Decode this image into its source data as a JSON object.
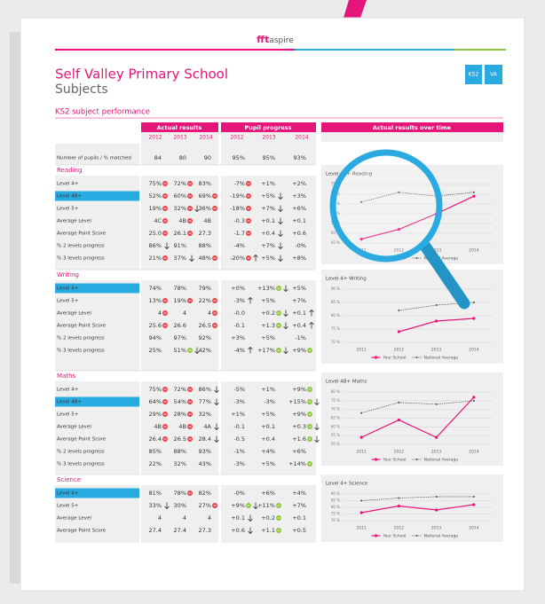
{
  "logo": {
    "brand": "fft",
    "product": "aspire"
  },
  "title": "Self Valley Primary School",
  "subtitle": "Subjects",
  "buttons": [
    "KS2",
    "VA"
  ],
  "section_title": "KS2 subject performance",
  "headers": {
    "actual": "Actual results",
    "progress": "Pupil progress",
    "over_time": "Actual results over time"
  },
  "actual_years": [
    "2012",
    "2013",
    "2014"
  ],
  "progress_years": [
    "2012",
    "2013",
    "2014"
  ],
  "summary_row": {
    "label": "Number of pupils / % matched",
    "cells": [
      "84",
      "80",
      "90",
      "95%",
      "95%",
      "93%"
    ]
  },
  "sections": [
    {
      "name": "Reading",
      "rows": [
        {
          "label": "Level 4+",
          "cells": [
            {
              "text": "75%",
              "dot": "red"
            },
            {
              "text": "72%",
              "dot": "red"
            },
            "83%",
            {
              "text": "-7%",
              "dot": "red"
            },
            "+1%",
            "+2%"
          ]
        },
        {
          "label": "Level 4B+",
          "highlight": true,
          "cells": [
            {
              "text": "52%",
              "dot": "red"
            },
            {
              "text": "60%",
              "dot": "red"
            },
            {
              "text": "69%",
              "dot": "red"
            },
            {
              "text": "-19%",
              "dot": "red"
            },
            {
              "text": "+5%",
              "arrow": "up"
            },
            "+3%"
          ]
        },
        {
          "label": "Level 5+",
          "cells": [
            {
              "text": "19%",
              "dot": "red"
            },
            {
              "text": "32%",
              "dot": "red",
              "arrow": "up"
            },
            {
              "text": "36%",
              "dot": "red"
            },
            {
              "text": "-18%",
              "dot": "red"
            },
            {
              "text": "+7%",
              "arrow": "up"
            },
            "+6%"
          ]
        },
        {
          "label": "Average Level",
          "cells": [
            {
              "text": "4C",
              "dot": "red"
            },
            {
              "text": "4B",
              "dot": "red"
            },
            "4B",
            {
              "text": "-0.3",
              "dot": "red"
            },
            {
              "text": "+0.1",
              "arrow": "up"
            },
            "+0.1"
          ]
        },
        {
          "label": "Average Point Score",
          "cells": [
            {
              "text": "25.0",
              "dot": "red"
            },
            {
              "text": "26.1",
              "dot": "red"
            },
            "27.3",
            {
              "text": "-1.7",
              "dot": "red"
            },
            {
              "text": "+0.4",
              "arrow": "up"
            },
            "+0.6"
          ]
        },
        {
          "label": "% 2 levels progress",
          "cells": [
            {
              "text": "86%",
              "arrow": "up"
            },
            "91%",
            "88%",
            "-4%",
            {
              "text": "+7%",
              "arrow": "up"
            },
            "-0%"
          ]
        },
        {
          "label": "% 3 levels progress",
          "cells": [
            {
              "text": "21%",
              "dot": "red"
            },
            {
              "text": "37%",
              "arrow": "up"
            },
            {
              "text": "48%",
              "dot": "red"
            },
            {
              "text": "-20%",
              "dot": "red",
              "arrow": "down"
            },
            {
              "text": "+5%",
              "arrow": "up"
            },
            "+8%"
          ]
        }
      ],
      "chart": {
        "title": "Level 4B+ Reading",
        "x": [
          "2011",
          "2012",
          "2013",
          "2014"
        ],
        "ylim": [
          45,
          75
        ],
        "yticks": [
          {
            "value": 45,
            "label": "45 %"
          },
          {
            "value": 50,
            "label": "50 %"
          },
          {
            "value": 55,
            "label": "55 %"
          },
          {
            "value": 60,
            "label": "60 %"
          },
          {
            "value": 65,
            "label": "65 %"
          },
          {
            "value": 70,
            "label": "70 %"
          },
          {
            "value": 75,
            "label": "75 %"
          }
        ],
        "series": [
          {
            "name": "Your School",
            "color": "#e5157a",
            "values": [
              47,
              52,
              60,
              69
            ]
          },
          {
            "name": "National Average",
            "color": "#444444",
            "values": [
              66,
              71,
              69,
              71
            ]
          }
        ]
      }
    },
    {
      "name": "Writing",
      "rows": [
        {
          "label": "Level 4+",
          "highlight": true,
          "cells": [
            "74%",
            "78%",
            "79%",
            "+0%",
            {
              "text": "+13%",
              "dot": "green",
              "arrow": "up"
            },
            "+5%"
          ]
        },
        {
          "label": "Level 5+",
          "cells": [
            {
              "text": "13%",
              "dot": "red"
            },
            {
              "text": "19%",
              "dot": "red"
            },
            {
              "text": "22%",
              "dot": "red"
            },
            {
              "text": "-3%",
              "arrow": "down"
            },
            "+5%",
            "+7%"
          ]
        },
        {
          "label": "Average Level",
          "cells": [
            {
              "text": "4",
              "dot": "red"
            },
            "4",
            {
              "text": "4",
              "dot": "red"
            },
            "-0.0",
            {
              "text": "+0.2",
              "dot": "green",
              "arrow": "up"
            },
            {
              "text": "+0.1",
              "arrow": "down"
            }
          ]
        },
        {
          "label": "Average Point Score",
          "cells": [
            {
              "text": "25.6",
              "dot": "red"
            },
            "26.6",
            {
              "text": "26.5",
              "dot": "red"
            },
            "-0.1",
            {
              "text": "+1.3",
              "dot": "green",
              "arrow": "up"
            },
            {
              "text": "+0.4",
              "arrow": "down"
            }
          ]
        },
        {
          "label": "% 2 levels progress",
          "cells": [
            "94%",
            "97%",
            "92%",
            "+3%",
            "+5%",
            "-1%"
          ]
        },
        {
          "label": "% 3 levels progress",
          "cells": [
            "25%",
            {
              "text": "51%",
              "dot": "green",
              "arrow": "up"
            },
            "42%",
            {
              "text": "-4%",
              "arrow": "down"
            },
            {
              "text": "+17%",
              "dot": "green",
              "arrow": "up"
            },
            {
              "text": "+9%",
              "dot": "green"
            }
          ]
        }
      ],
      "chart": {
        "title": "Level 4+ Writing",
        "x": [
          "2011",
          "2012",
          "2013",
          "2014"
        ],
        "ylim": [
          70,
          90
        ],
        "yticks": [
          {
            "value": 70,
            "label": "70 %"
          },
          {
            "value": 75,
            "label": "75 %"
          },
          {
            "value": 80,
            "label": "80 %"
          },
          {
            "value": 85,
            "label": "85 %"
          },
          {
            "value": 90,
            "label": "90 %"
          }
        ],
        "series": [
          {
            "name": "Your School",
            "color": "#e5157a",
            "values": [
              null,
              74,
              78,
              79
            ]
          },
          {
            "name": "National Average",
            "color": "#444444",
            "values": [
              null,
              82,
              84,
              85
            ]
          }
        ]
      }
    },
    {
      "name": "Maths",
      "rows": [
        {
          "label": "Level 4+",
          "cells": [
            {
              "text": "75%",
              "dot": "red"
            },
            {
              "text": "72%",
              "dot": "red"
            },
            {
              "text": "86%",
              "arrow": "up"
            },
            "-5%",
            "+1%",
            {
              "text": "+9%",
              "dot": "green"
            }
          ]
        },
        {
          "label": "Level 4B+",
          "highlight": true,
          "cells": [
            {
              "text": "64%",
              "dot": "red"
            },
            {
              "text": "54%",
              "dot": "red"
            },
            {
              "text": "77%",
              "arrow": "up"
            },
            "-3%",
            "-3%",
            {
              "text": "+15%",
              "dot": "green",
              "arrow": "up"
            }
          ]
        },
        {
          "label": "Level 5+",
          "cells": [
            {
              "text": "29%",
              "dot": "red"
            },
            {
              "text": "28%",
              "dot": "red"
            },
            "32%",
            "+1%",
            "+5%",
            {
              "text": "+9%",
              "dot": "green"
            }
          ]
        },
        {
          "label": "Average Level",
          "cells": [
            {
              "text": "4B",
              "dot": "red"
            },
            {
              "text": "4B",
              "dot": "red"
            },
            {
              "text": "4A",
              "arrow": "up"
            },
            "-0.1",
            "+0.1",
            {
              "text": "+0.3",
              "dot": "green",
              "arrow": "up"
            }
          ]
        },
        {
          "label": "Average Point Score",
          "cells": [
            {
              "text": "26.4",
              "dot": "red"
            },
            {
              "text": "26.5",
              "dot": "red"
            },
            {
              "text": "28.4",
              "arrow": "up"
            },
            "-0.5",
            "+0.4",
            {
              "text": "+1.6",
              "dot": "green",
              "arrow": "up"
            }
          ]
        },
        {
          "label": "% 2 levels progress",
          "cells": [
            "85%",
            "88%",
            "93%",
            "-1%",
            "+4%",
            "+6%"
          ]
        },
        {
          "label": "% 3 levels progress",
          "cells": [
            "22%",
            "32%",
            "43%",
            "-3%",
            "+5%",
            {
              "text": "+14%",
              "dot": "green"
            }
          ]
        }
      ],
      "chart": {
        "title": "Level 4B+ Maths",
        "x": [
          "2011",
          "2012",
          "2013",
          "2014"
        ],
        "ylim": [
          50,
          80
        ],
        "yticks": [
          {
            "value": 50,
            "label": "50 %"
          },
          {
            "value": 55,
            "label": "55 %"
          },
          {
            "value": 60,
            "label": "60 %"
          },
          {
            "value": 65,
            "label": "65 %"
          },
          {
            "value": 70,
            "label": "70 %"
          },
          {
            "value": 75,
            "label": "75 %"
          },
          {
            "value": 80,
            "label": "80 %"
          }
        ],
        "series": [
          {
            "name": "Your School",
            "color": "#e5157a",
            "values": [
              54,
              64,
              54,
              77
            ]
          },
          {
            "name": "National Average",
            "color": "#444444",
            "values": [
              68,
              74,
              73,
              75
            ]
          }
        ]
      }
    },
    {
      "name": "Science",
      "rows": [
        {
          "label": "Level 4+",
          "highlight": true,
          "cells": [
            "81%",
            {
              "text": "78%",
              "dot": "red"
            },
            "82%",
            "-0%",
            "+6%",
            "+4%"
          ]
        },
        {
          "label": "Level 5+",
          "cells": [
            {
              "text": "33%",
              "arrow": "up"
            },
            "30%",
            {
              "text": "27%",
              "dot": "red"
            },
            {
              "text": "+9%",
              "dot": "green",
              "arrow": "up"
            },
            {
              "text": "+11%",
              "dot": "green"
            },
            "+7%"
          ]
        },
        {
          "label": "Average Level",
          "cells": [
            "4",
            "4",
            "4",
            {
              "text": "+0.1",
              "arrow": "up"
            },
            {
              "text": "+0.2",
              "dot": "green"
            },
            "+0.1"
          ]
        },
        {
          "label": "Average Point Score",
          "cells": [
            "27.4",
            "27.4",
            "27.3",
            {
              "text": "+0.6",
              "arrow": "up"
            },
            {
              "text": "+1.1",
              "dot": "green"
            },
            "+0.5"
          ]
        }
      ],
      "chart": {
        "title": "Level 4+ Science",
        "x": [
          "2011",
          "2012",
          "2013",
          "2014"
        ],
        "ylim": [
          70,
          90
        ],
        "yticks": [
          {
            "value": 70,
            "label": "70 %"
          },
          {
            "value": 75,
            "label": "75 %"
          },
          {
            "value": 80,
            "label": "80 %"
          },
          {
            "value": 85,
            "label": "85 %"
          },
          {
            "value": 90,
            "label": "90 %"
          }
        ],
        "series": [
          {
            "name": "Your School",
            "color": "#e5157a",
            "values": [
              76,
              81,
              78,
              82
            ]
          },
          {
            "name": "National Average",
            "color": "#444444",
            "values": [
              85,
              87,
              88,
              88
            ]
          }
        ]
      }
    }
  ]
}
